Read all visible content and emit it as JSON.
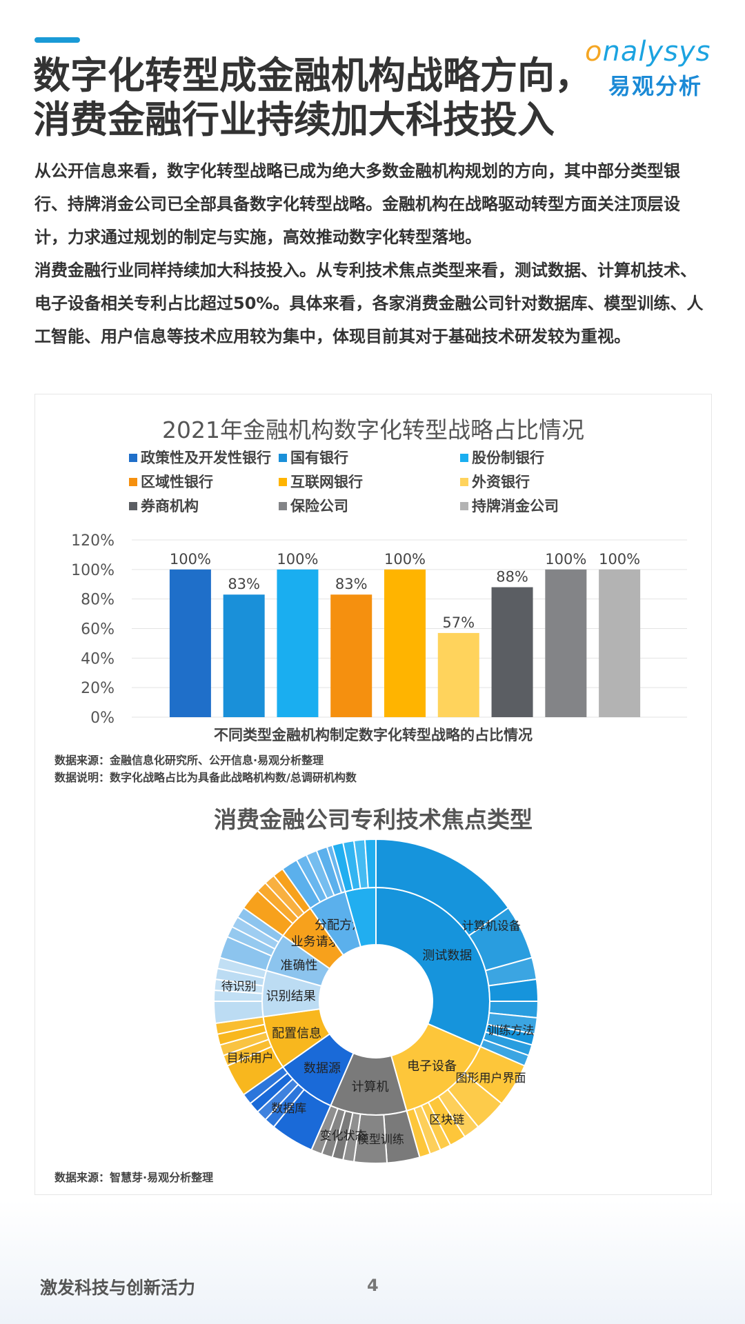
{
  "logo": {
    "en_prefix": "o",
    "en_rest": "nalysys",
    "cn": "易观分析"
  },
  "title": {
    "line1": "数字化转型成金融机构战略方向，",
    "line2": "消费金融行业持续加大科技投入"
  },
  "intro": {
    "p1": "从公开信息来看，数字化转型战略已成为绝大多数金融机构规划的方向，其中部分类型银行、持牌消金公司已全部具备数字化转型战略。金融机构在战略驱动转型方面关注顶层设计，力求通过规划的制定与实施，高效推动数字化转型落地。",
    "p2": "消费金融行业同样持续加大科技投入。从专利技术焦点类型来看，测试数据、计算机技术、电子设备相关专利占比超过50%。具体来看，各家消费金融公司针对数据库、模型训练、人工智能、用户信息等技术应用较为集中，体现目前其对于基础技术研发较为重视。"
  },
  "chart_data": [
    {
      "type": "bar",
      "title": "2021年金融机构数字化转型战略占比情况",
      "xlabel": "不同类型金融机构制定数字化转型战略的占比情况",
      "ylabel": "",
      "ylim": [
        0,
        120
      ],
      "y_ticks": [
        "0%",
        "20%",
        "40%",
        "60%",
        "80%",
        "100%",
        "120%"
      ],
      "grid": true,
      "legend_position": "top",
      "categories": [
        "政策性及开发性银行",
        "国有银行",
        "股份制银行",
        "区域性银行",
        "互联网银行",
        "外资银行",
        "券商机构",
        "保险公司",
        "持牌消金公司"
      ],
      "values": [
        100,
        83,
        100,
        83,
        100,
        57,
        88,
        100,
        100
      ],
      "data_labels": [
        "100%",
        "83%",
        "100%",
        "83%",
        "100%",
        "57%",
        "88%",
        "100%",
        "100%"
      ],
      "colors": [
        "#1f6fc9",
        "#1a90d9",
        "#1aaef0",
        "#f5900f",
        "#ffb400",
        "#ffd35c",
        "#5b5e63",
        "#838487",
        "#b3b3b3"
      ],
      "source": "数据来源：金融信息化研究所、公开信息·易观分析整理",
      "note": "数据说明：数字化战略占比为具备此战略机构数/总调研机构数"
    },
    {
      "type": "sunburst",
      "title": "消费金融公司专利技术焦点类型",
      "source": "数据来源：智慧芽·易观分析整理",
      "inner_ring": [
        {
          "label": "测试数据",
          "value": 29,
          "color": "#1694dc"
        },
        {
          "label": "电子设备",
          "value": 13,
          "color": "#fdc63a"
        },
        {
          "label": "计算机",
          "value": 10,
          "color": "#7a7a7a"
        },
        {
          "label": "数据源",
          "value": 8,
          "color": "#1a6ad8"
        },
        {
          "label": "配置信息",
          "value": 7,
          "color": "#f8b71e"
        },
        {
          "label": "识别结果",
          "value": 6,
          "color": "#bcdcf3"
        },
        {
          "label": "准确性",
          "value": 5,
          "color": "#8cc4ee"
        },
        {
          "label": "业务请求",
          "value": 5,
          "color": "#f7a11c"
        },
        {
          "label": "分配方法",
          "value": 5,
          "color": "#5bb0ec"
        },
        {
          "label": "",
          "value": 4,
          "color": "#21aef0"
        }
      ],
      "outer_ring_labels": [
        "计算机设备",
        "训练方法",
        "图形用户界面",
        "区块链",
        "模型训练",
        "变化状态",
        "数据库",
        "目标用户",
        "待识别"
      ]
    }
  ],
  "footer": {
    "text": "激发科技与创新活力",
    "page": "4"
  }
}
